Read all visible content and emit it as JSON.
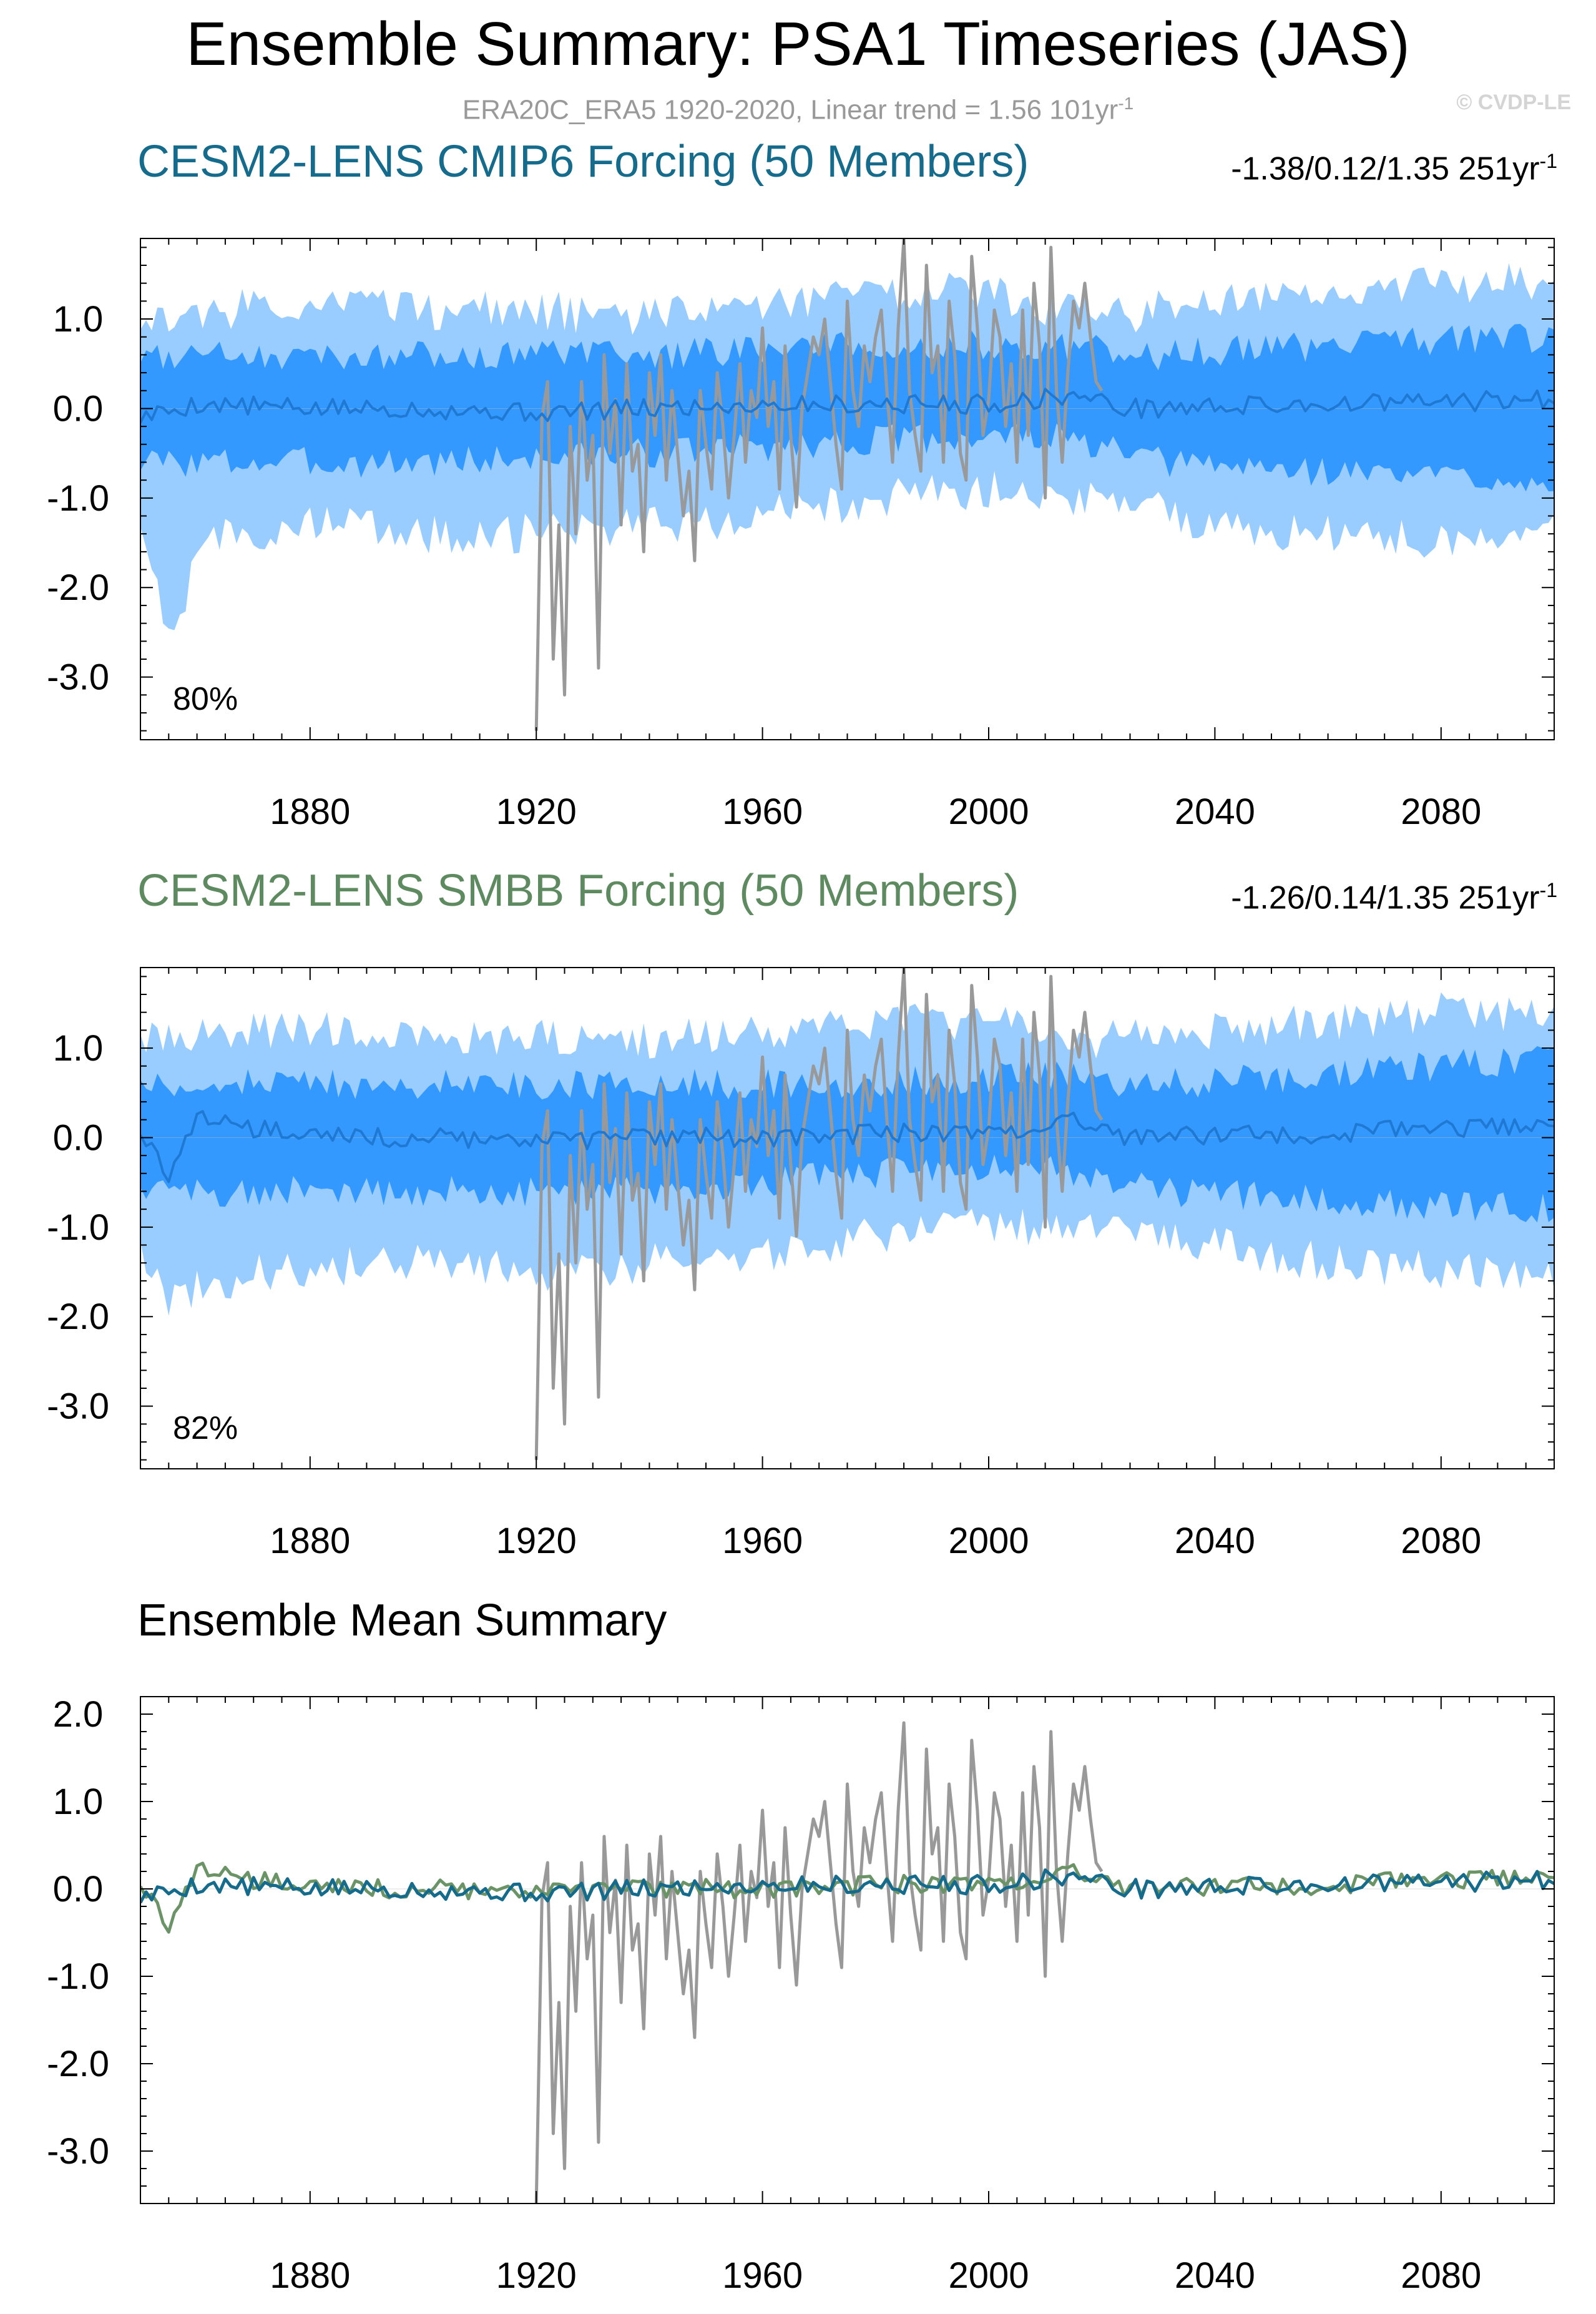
{
  "header": {
    "title": "Ensemble Summary: PSA1 Timeseries (JAS)",
    "subtitle_main": "ERA20C_ERA5 1920-2020, Linear trend = 1.56 101yr",
    "subtitle_exp": "-1",
    "watermark": "© CVDP-LE"
  },
  "colors": {
    "spread_outer": "#99ccff",
    "spread_inner": "#3399ff",
    "ensemble_mean": "#1f78d1",
    "observations": "#999999",
    "cmip6_title": "#146b8c",
    "smbb_title": "#5e8a60",
    "cmip6_mean_line": "#146b8c",
    "smbb_mean_line": "#6b9466"
  },
  "panels": [
    {
      "id": "cmip6",
      "title": "CESM2-LENS CMIP6 Forcing (50 Members)",
      "stats": "-1.38/0.12/1.35 251yr",
      "stats_exp": "-1",
      "pct": "80%"
    },
    {
      "id": "smbb",
      "title": "CESM2-LENS SMBB Forcing (50 Members)",
      "stats": "-1.26/0.14/1.35 251yr",
      "stats_exp": "-1",
      "pct": "82%"
    },
    {
      "id": "mean",
      "title": "Ensemble Mean Summary"
    }
  ],
  "chart_data": [
    {
      "type": "area",
      "panel": "cmip6",
      "x_range": [
        1850,
        2100
      ],
      "ylim": [
        -3.7,
        1.9
      ],
      "y_ticks": [
        "1.0",
        "0.0",
        "-1.0",
        "-2.0",
        "-3.0"
      ],
      "x_ticks": [
        "1880",
        "1920",
        "1960",
        "2000",
        "2040",
        "2080"
      ],
      "grid": false,
      "series": [
        {
          "role": "outer-spread",
          "lower_anchors": [
            [
              1850,
              -1.2
            ],
            [
              1852,
              -1.8
            ],
            [
              1856,
              -2.6
            ],
            [
              1860,
              -1.5
            ],
            [
              1880,
              -1.3
            ],
            [
              1900,
              -1.4
            ],
            [
              1920,
              -1.4
            ],
            [
              1940,
              -1.3
            ],
            [
              1960,
              -1.2
            ],
            [
              1980,
              -1.0
            ],
            [
              2000,
              -0.9
            ],
            [
              2020,
              -1.0
            ],
            [
              2040,
              -1.3
            ],
            [
              2060,
              -1.4
            ],
            [
              2080,
              -1.5
            ],
            [
              2100,
              -1.4
            ]
          ],
          "upper_anchors": [
            [
              1850,
              1.0
            ],
            [
              1880,
              1.2
            ],
            [
              1900,
              1.1
            ],
            [
              1920,
              1.1
            ],
            [
              1940,
              1.0
            ],
            [
              1960,
              1.2
            ],
            [
              1980,
              1.3
            ],
            [
              2000,
              1.3
            ],
            [
              2020,
              1.0
            ],
            [
              2040,
              1.2
            ],
            [
              2060,
              1.3
            ],
            [
              2080,
              1.4
            ],
            [
              2100,
              1.4
            ]
          ]
        },
        {
          "role": "inner-spread",
          "lower_anchors": [
            [
              1850,
              -0.6
            ],
            [
              1900,
              -0.6
            ],
            [
              1940,
              -0.5
            ],
            [
              1980,
              -0.35
            ],
            [
              2010,
              -0.3
            ],
            [
              2030,
              -0.6
            ],
            [
              2060,
              -0.7
            ],
            [
              2100,
              -0.8
            ]
          ],
          "upper_anchors": [
            [
              1850,
              0.6
            ],
            [
              1900,
              0.6
            ],
            [
              1940,
              0.6
            ],
            [
              1980,
              0.7
            ],
            [
              2010,
              0.7
            ],
            [
              2030,
              0.6
            ],
            [
              2060,
              0.7
            ],
            [
              2100,
              0.8
            ]
          ]
        },
        {
          "role": "ensemble-mean",
          "anchors": [
            [
              1850,
              -0.1
            ],
            [
              1860,
              0.05
            ],
            [
              1880,
              0.0
            ],
            [
              1900,
              0.0
            ],
            [
              1920,
              -0.05
            ],
            [
              1940,
              0.0
            ],
            [
              1960,
              0.05
            ],
            [
              1980,
              0.05
            ],
            [
              2000,
              0.05
            ],
            [
              2015,
              0.15
            ],
            [
              2025,
              0.0
            ],
            [
              2060,
              0.05
            ],
            [
              2100,
              0.1
            ]
          ]
        },
        {
          "role": "observations",
          "name": "ERA20C_ERA5",
          "years": [
            1920,
            2020
          ],
          "values": [
            -3.6,
            -0.1,
            0.3,
            -2.8,
            -1.3,
            -3.2,
            -0.2,
            -1.4,
            0.3,
            -0.8,
            -0.3,
            -2.9,
            0.6,
            -0.5,
            0.1,
            -1.3,
            0.5,
            -0.7,
            -0.4,
            -1.6,
            0.4,
            -0.3,
            0.6,
            -0.8,
            0.2,
            -0.5,
            -1.2,
            -0.7,
            -1.7,
            0.2,
            -0.4,
            -0.9,
            0.4,
            -0.2,
            -1.0,
            -0.3,
            0.5,
            -0.6,
            0.2,
            -0.1,
            0.9,
            -0.2,
            0.3,
            -0.9,
            0.7,
            -0.3,
            -1.1,
            0.0,
            0.4,
            0.8,
            0.6,
            1.0,
            0.3,
            -0.4,
            -0.9,
            1.2,
            0.2,
            -0.2,
            0.7,
            0.3,
            0.8,
            1.1,
            0.2,
            -0.6,
            0.9,
            1.9,
            0.2,
            -0.3,
            -0.7,
            1.6,
            0.4,
            0.7,
            -0.6,
            1.2,
            0.6,
            -0.5,
            -0.8,
            1.7,
            0.9,
            -0.3,
            0.1,
            1.1,
            0.8,
            -0.2,
            0.5,
            -0.6,
            1.1,
            -0.3,
            1.4,
            0.7,
            -1.0,
            1.8,
            0.2,
            -0.6,
            0.4,
            1.2,
            0.9,
            1.4,
            0.8,
            0.3,
            0.2
          ]
        }
      ]
    },
    {
      "type": "area",
      "panel": "smbb",
      "x_range": [
        1850,
        2100
      ],
      "ylim": [
        -3.7,
        1.9
      ],
      "y_ticks": [
        "1.0",
        "0.0",
        "-1.0",
        "-2.0",
        "-3.0"
      ],
      "x_ticks": [
        "1880",
        "1920",
        "1960",
        "2000",
        "2040",
        "2080"
      ],
      "grid": false,
      "series": [
        {
          "role": "outer-spread",
          "lower_anchors": [
            [
              1850,
              -1.2
            ],
            [
              1855,
              -1.8
            ],
            [
              1870,
              -1.5
            ],
            [
              1900,
              -1.4
            ],
            [
              1920,
              -1.5
            ],
            [
              1940,
              -1.4
            ],
            [
              1960,
              -1.3
            ],
            [
              1980,
              -1.1
            ],
            [
              2000,
              -1.0
            ],
            [
              2020,
              -1.0
            ],
            [
              2040,
              -1.2
            ],
            [
              2060,
              -1.4
            ],
            [
              2080,
              -1.5
            ],
            [
              2100,
              -1.5
            ]
          ],
          "upper_anchors": [
            [
              1850,
              1.1
            ],
            [
              1880,
              1.2
            ],
            [
              1900,
              1.1
            ],
            [
              1920,
              1.1
            ],
            [
              1940,
              1.1
            ],
            [
              1960,
              1.2
            ],
            [
              1980,
              1.3
            ],
            [
              2000,
              1.3
            ],
            [
              2020,
              1.1
            ],
            [
              2040,
              1.2
            ],
            [
              2060,
              1.3
            ],
            [
              2080,
              1.4
            ],
            [
              2100,
              1.4
            ]
          ]
        },
        {
          "role": "inner-spread",
          "lower_anchors": [
            [
              1850,
              -0.6
            ],
            [
              1900,
              -0.6
            ],
            [
              1940,
              -0.6
            ],
            [
              1980,
              -0.4
            ],
            [
              2010,
              -0.3
            ],
            [
              2030,
              -0.6
            ],
            [
              2060,
              -0.7
            ],
            [
              2100,
              -0.8
            ]
          ],
          "upper_anchors": [
            [
              1850,
              0.6
            ],
            [
              1900,
              0.6
            ],
            [
              1940,
              0.6
            ],
            [
              1980,
              0.6
            ],
            [
              2010,
              0.7
            ],
            [
              2030,
              0.6
            ],
            [
              2060,
              0.7
            ],
            [
              2100,
              0.9
            ]
          ]
        },
        {
          "role": "ensemble-mean",
          "anchors": [
            [
              1850,
              0.0
            ],
            [
              1855,
              -0.4
            ],
            [
              1860,
              0.2
            ],
            [
              1880,
              0.0
            ],
            [
              1900,
              0.0
            ],
            [
              1920,
              -0.05
            ],
            [
              1940,
              0.0
            ],
            [
              1960,
              0.0
            ],
            [
              1980,
              0.05
            ],
            [
              2000,
              0.05
            ],
            [
              2015,
              0.2
            ],
            [
              2025,
              0.0
            ],
            [
              2060,
              0.05
            ],
            [
              2100,
              0.15
            ]
          ]
        },
        {
          "role": "observations",
          "name": "ERA20C_ERA5",
          "years": [
            1920,
            2020
          ],
          "same_as_panel": "cmip6"
        }
      ]
    },
    {
      "type": "line",
      "panel": "mean",
      "x_range": [
        1850,
        2100
      ],
      "ylim": [
        -3.6,
        2.2
      ],
      "y_ticks": [
        "2.0",
        "1.0",
        "0.0",
        "-1.0",
        "-2.0",
        "-3.0"
      ],
      "x_ticks": [
        "1880",
        "1920",
        "1960",
        "2000",
        "2040",
        "2080"
      ],
      "grid": false,
      "series": [
        {
          "role": "observations",
          "name": "ERA20C_ERA5",
          "same_as_panel": "cmip6"
        },
        {
          "role": "cmip6-ensemble-mean"
        },
        {
          "role": "smbb-ensemble-mean"
        }
      ]
    }
  ]
}
